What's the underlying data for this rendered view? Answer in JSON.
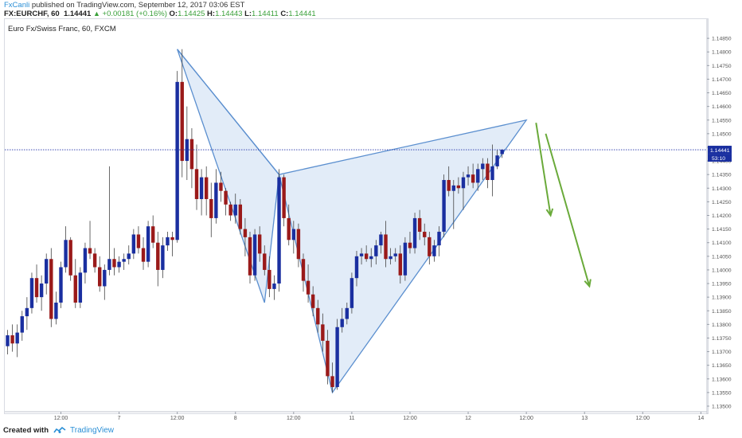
{
  "header": {
    "author": "FxCanli",
    "published_text": " published on TradingView.com, September 12, 2017 03:06 EST",
    "symbol_line": "FX:EURCHF, 60",
    "last": "1.14441",
    "change": "+0.00181 (+0.16%)",
    "o_label": "O:",
    "o_value": "1.14425",
    "h_label": "H:",
    "h_value": "1.14443",
    "l_label": "L:",
    "l_value": "1.14411",
    "c_label": "C:",
    "c_value": "1.14441"
  },
  "chart_title": "Euro Fx/Swiss Franc, 60, FXCM",
  "footer": {
    "created_with": "Created with",
    "brand": "TradingView"
  },
  "colors": {
    "bull": "#1a2fa0",
    "bear": "#9a1a1a",
    "pattern_stroke": "#5b8fcf",
    "pattern_fill": "#dde9f7",
    "arrow": "#6aaa3a",
    "price_line": "#2233aa"
  },
  "chart_data": {
    "type": "candlestick",
    "y_axis": {
      "min": 1.135,
      "max": 1.149,
      "position": "right",
      "ticks": [
        "1.14850",
        "1.14800",
        "1.14750",
        "1.14700",
        "1.14650",
        "1.14600",
        "1.14550",
        "1.14500",
        "1.14450",
        "1.14400",
        "1.14350",
        "1.14300",
        "1.14250",
        "1.14200",
        "1.14150",
        "1.14100",
        "1.14050",
        "1.14000",
        "1.13950",
        "1.13900",
        "1.13850",
        "1.13800",
        "1.13750",
        "1.13700",
        "1.13650",
        "1.13600",
        "1.13550",
        "1.13500"
      ]
    },
    "x_axis": {
      "ticks": [
        {
          "label": "12:00",
          "slot": 11
        },
        {
          "label": "7",
          "slot": 23
        },
        {
          "label": "12:00",
          "slot": 35
        },
        {
          "label": "8",
          "slot": 47
        },
        {
          "label": "12:00",
          "slot": 59
        },
        {
          "label": "11",
          "slot": 71
        },
        {
          "label": "12:00",
          "slot": 83
        },
        {
          "label": "12",
          "slot": 95
        },
        {
          "label": "12:00",
          "slot": 107
        },
        {
          "label": "13",
          "slot": 119
        },
        {
          "label": "12:00",
          "slot": 131
        },
        {
          "label": "14",
          "slot": 143
        }
      ]
    },
    "last_price": {
      "value": 1.14441,
      "label": "1.14441",
      "countdown": "53:10"
    },
    "candles": [
      [
        1.1372,
        1.1378,
        1.1369,
        1.1376
      ],
      [
        1.1376,
        1.138,
        1.137,
        1.1373
      ],
      [
        1.1373,
        1.138,
        1.1368,
        1.1377
      ],
      [
        1.1377,
        1.1385,
        1.1374,
        1.1383
      ],
      [
        1.1383,
        1.139,
        1.1378,
        1.1386
      ],
      [
        1.1386,
        1.1399,
        1.1384,
        1.1397
      ],
      [
        1.1397,
        1.1402,
        1.1388,
        1.139
      ],
      [
        1.139,
        1.1398,
        1.1385,
        1.1395
      ],
      [
        1.1395,
        1.1406,
        1.1391,
        1.1404
      ],
      [
        1.1404,
        1.1408,
        1.1379,
        1.1382
      ],
      [
        1.1382,
        1.1392,
        1.138,
        1.1388
      ],
      [
        1.1388,
        1.1403,
        1.1386,
        1.1401
      ],
      [
        1.1401,
        1.1416,
        1.1399,
        1.1411
      ],
      [
        1.1411,
        1.1412,
        1.1396,
        1.1398
      ],
      [
        1.1398,
        1.1404,
        1.1386,
        1.1388
      ],
      [
        1.1388,
        1.1401,
        1.1386,
        1.1399
      ],
      [
        1.1399,
        1.141,
        1.1395,
        1.1408
      ],
      [
        1.1408,
        1.1418,
        1.1404,
        1.1406
      ],
      [
        1.1406,
        1.1408,
        1.1399,
        1.1401
      ],
      [
        1.1401,
        1.1405,
        1.1392,
        1.1394
      ],
      [
        1.1394,
        1.1402,
        1.1389,
        1.14
      ],
      [
        1.14,
        1.1438,
        1.1398,
        1.1404
      ],
      [
        1.1404,
        1.1408,
        1.1398,
        1.1401
      ],
      [
        1.1401,
        1.1405,
        1.1399,
        1.1403
      ],
      [
        1.1403,
        1.1406,
        1.14,
        1.1404
      ],
      [
        1.1404,
        1.1409,
        1.1402,
        1.1406
      ],
      [
        1.1406,
        1.1415,
        1.1404,
        1.1413
      ],
      [
        1.1413,
        1.1416,
        1.1406,
        1.1408
      ],
      [
        1.1408,
        1.1412,
        1.14,
        1.1403
      ],
      [
        1.1403,
        1.1418,
        1.1401,
        1.1416
      ],
      [
        1.1416,
        1.142,
        1.1408,
        1.141
      ],
      [
        1.141,
        1.1414,
        1.1394,
        1.14
      ],
      [
        1.14,
        1.1412,
        1.1397,
        1.1409
      ],
      [
        1.1409,
        1.1414,
        1.1407,
        1.1412
      ],
      [
        1.1412,
        1.1414,
        1.1405,
        1.1411
      ],
      [
        1.1411,
        1.1473,
        1.141,
        1.1469
      ],
      [
        1.1469,
        1.1481,
        1.1434,
        1.144
      ],
      [
        1.144,
        1.146,
        1.1433,
        1.1448
      ],
      [
        1.1448,
        1.1452,
        1.143,
        1.1437
      ],
      [
        1.1437,
        1.1446,
        1.1422,
        1.1426
      ],
      [
        1.1426,
        1.1437,
        1.142,
        1.1434
      ],
      [
        1.1434,
        1.1438,
        1.142,
        1.1426
      ],
      [
        1.1426,
        1.1432,
        1.1412,
        1.1419
      ],
      [
        1.1419,
        1.1437,
        1.1417,
        1.1432
      ],
      [
        1.1432,
        1.1436,
        1.1425,
        1.1429
      ],
      [
        1.1429,
        1.143,
        1.142,
        1.1424
      ],
      [
        1.1424,
        1.1425,
        1.1418,
        1.142
      ],
      [
        1.142,
        1.1428,
        1.1417,
        1.1424
      ],
      [
        1.1424,
        1.1426,
        1.1413,
        1.1415
      ],
      [
        1.1415,
        1.1419,
        1.1405,
        1.1412
      ],
      [
        1.1412,
        1.1414,
        1.1395,
        1.1398
      ],
      [
        1.1398,
        1.1415,
        1.1396,
        1.1413
      ],
      [
        1.1413,
        1.1416,
        1.1403,
        1.1406
      ],
      [
        1.1406,
        1.1409,
        1.1398,
        1.14
      ],
      [
        1.14,
        1.1405,
        1.139,
        1.1393
      ],
      [
        1.1393,
        1.1398,
        1.1389,
        1.1395
      ],
      [
        1.1395,
        1.1437,
        1.1392,
        1.1434
      ],
      [
        1.1434,
        1.1435,
        1.1416,
        1.1419
      ],
      [
        1.1419,
        1.1424,
        1.1409,
        1.1411
      ],
      [
        1.1411,
        1.1418,
        1.1406,
        1.1415
      ],
      [
        1.1415,
        1.1417,
        1.1401,
        1.1404
      ],
      [
        1.1404,
        1.1406,
        1.1392,
        1.1396
      ],
      [
        1.1396,
        1.1402,
        1.1388,
        1.1391
      ],
      [
        1.1391,
        1.1394,
        1.1383,
        1.1386
      ],
      [
        1.1386,
        1.1389,
        1.1377,
        1.138
      ],
      [
        1.138,
        1.1384,
        1.137,
        1.1374
      ],
      [
        1.1374,
        1.1378,
        1.1358,
        1.1361
      ],
      [
        1.1361,
        1.1366,
        1.1355,
        1.1357
      ],
      [
        1.1357,
        1.1382,
        1.1356,
        1.1379
      ],
      [
        1.1379,
        1.1386,
        1.1377,
        1.1382
      ],
      [
        1.1382,
        1.1388,
        1.138,
        1.1386
      ],
      [
        1.1386,
        1.1399,
        1.1384,
        1.1397
      ],
      [
        1.1397,
        1.1407,
        1.1394,
        1.1405
      ],
      [
        1.1405,
        1.1408,
        1.1402,
        1.1406
      ],
      [
        1.1406,
        1.1409,
        1.1403,
        1.1404
      ],
      [
        1.1404,
        1.1408,
        1.1401,
        1.1405
      ],
      [
        1.1405,
        1.1411,
        1.1402,
        1.1409
      ],
      [
        1.1409,
        1.1414,
        1.1406,
        1.1413
      ],
      [
        1.1413,
        1.1418,
        1.1401,
        1.1404
      ],
      [
        1.1404,
        1.1408,
        1.1402,
        1.1405
      ],
      [
        1.1405,
        1.1408,
        1.1403,
        1.1406
      ],
      [
        1.1406,
        1.1409,
        1.1395,
        1.1398
      ],
      [
        1.1398,
        1.1412,
        1.1396,
        1.141
      ],
      [
        1.141,
        1.1414,
        1.1406,
        1.1408
      ],
      [
        1.1408,
        1.1421,
        1.1406,
        1.1419
      ],
      [
        1.1419,
        1.1422,
        1.1411,
        1.1414
      ],
      [
        1.1414,
        1.1417,
        1.1409,
        1.1412
      ],
      [
        1.1412,
        1.1414,
        1.1402,
        1.1405
      ],
      [
        1.1405,
        1.1411,
        1.1403,
        1.1409
      ],
      [
        1.1409,
        1.1416,
        1.1405,
        1.1414
      ],
      [
        1.1414,
        1.1435,
        1.1412,
        1.1433
      ],
      [
        1.1433,
        1.1438,
        1.1427,
        1.1429
      ],
      [
        1.1429,
        1.1433,
        1.1415,
        1.1431
      ],
      [
        1.1431,
        1.1434,
        1.1428,
        1.143
      ],
      [
        1.143,
        1.1436,
        1.1422,
        1.1434
      ],
      [
        1.1434,
        1.1438,
        1.1431,
        1.1435
      ],
      [
        1.1435,
        1.1439,
        1.143,
        1.1432
      ],
      [
        1.1432,
        1.1439,
        1.1429,
        1.1437
      ],
      [
        1.1437,
        1.1441,
        1.1433,
        1.1439
      ],
      [
        1.1439,
        1.1441,
        1.143,
        1.1433
      ],
      [
        1.1433,
        1.1446,
        1.1427,
        1.1438
      ],
      [
        1.1438,
        1.1444,
        1.1437,
        1.1442
      ],
      [
        1.14425,
        1.14443,
        1.14411,
        1.14441
      ]
    ],
    "pattern": {
      "points": [
        {
          "slot": 35,
          "price": 1.1481
        },
        {
          "slot": 56,
          "price": 1.1435
        },
        {
          "slot": 67,
          "price": 1.1355
        },
        {
          "slot": 107,
          "price": 1.1455
        }
      ],
      "extra_point": {
        "slot": 53,
        "price": 1.1388
      }
    },
    "arrows": [
      {
        "from": {
          "slot": 109,
          "price": 1.1454
        },
        "to": {
          "slot": 112,
          "price": 1.142
        }
      },
      {
        "from": {
          "slot": 111,
          "price": 1.145
        },
        "to": {
          "slot": 120,
          "price": 1.1394
        }
      }
    ]
  }
}
